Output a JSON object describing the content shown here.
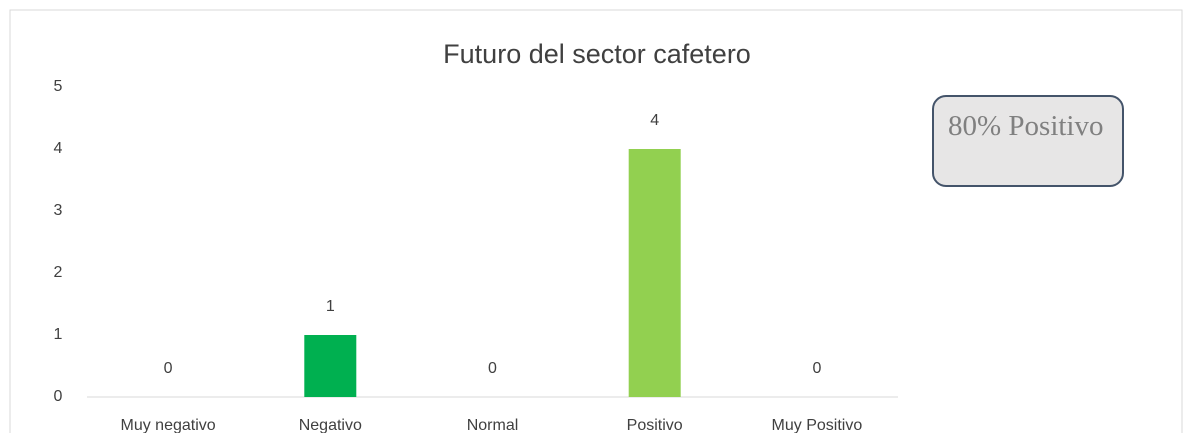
{
  "chart_data": {
    "type": "bar",
    "title": "Futuro del sector cafetero",
    "categories": [
      "Muy negativo",
      "Negativo",
      "Normal",
      "Positivo",
      "Muy Positivo"
    ],
    "values": [
      0,
      1,
      0,
      4,
      0
    ],
    "colors": [
      "#00b050",
      "#00b050",
      "#92d050",
      "#92d050",
      "#92d050"
    ],
    "ylim": [
      0,
      5
    ],
    "yticks": [
      0,
      1,
      2,
      3,
      4,
      5
    ],
    "grid": false,
    "annotation": "80% Positivo"
  }
}
